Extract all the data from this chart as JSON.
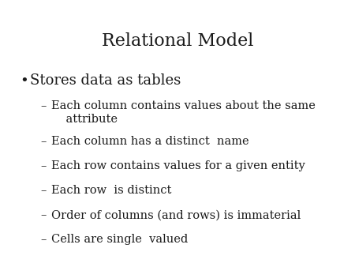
{
  "title": "Relational Model",
  "title_fontsize": 16,
  "background_color": "#ffffff",
  "text_color": "#1a1a1a",
  "bullet_main": "Stores data as tables",
  "bullet_main_fontsize": 13,
  "bullet_dot": "•",
  "sub_bullets": [
    [
      "Each column contains values about the same",
      "    attribute"
    ],
    [
      "Each column has a distinct  name"
    ],
    [
      "Each row contains values for a given entity"
    ],
    [
      "Each row  is distinct"
    ],
    [
      "Order of columns (and rows) is immaterial"
    ],
    [
      "Cells are single  valued"
    ]
  ],
  "sub_bullet_fontsize": 10.5,
  "dash": "–",
  "font_family": "DejaVu Serif"
}
